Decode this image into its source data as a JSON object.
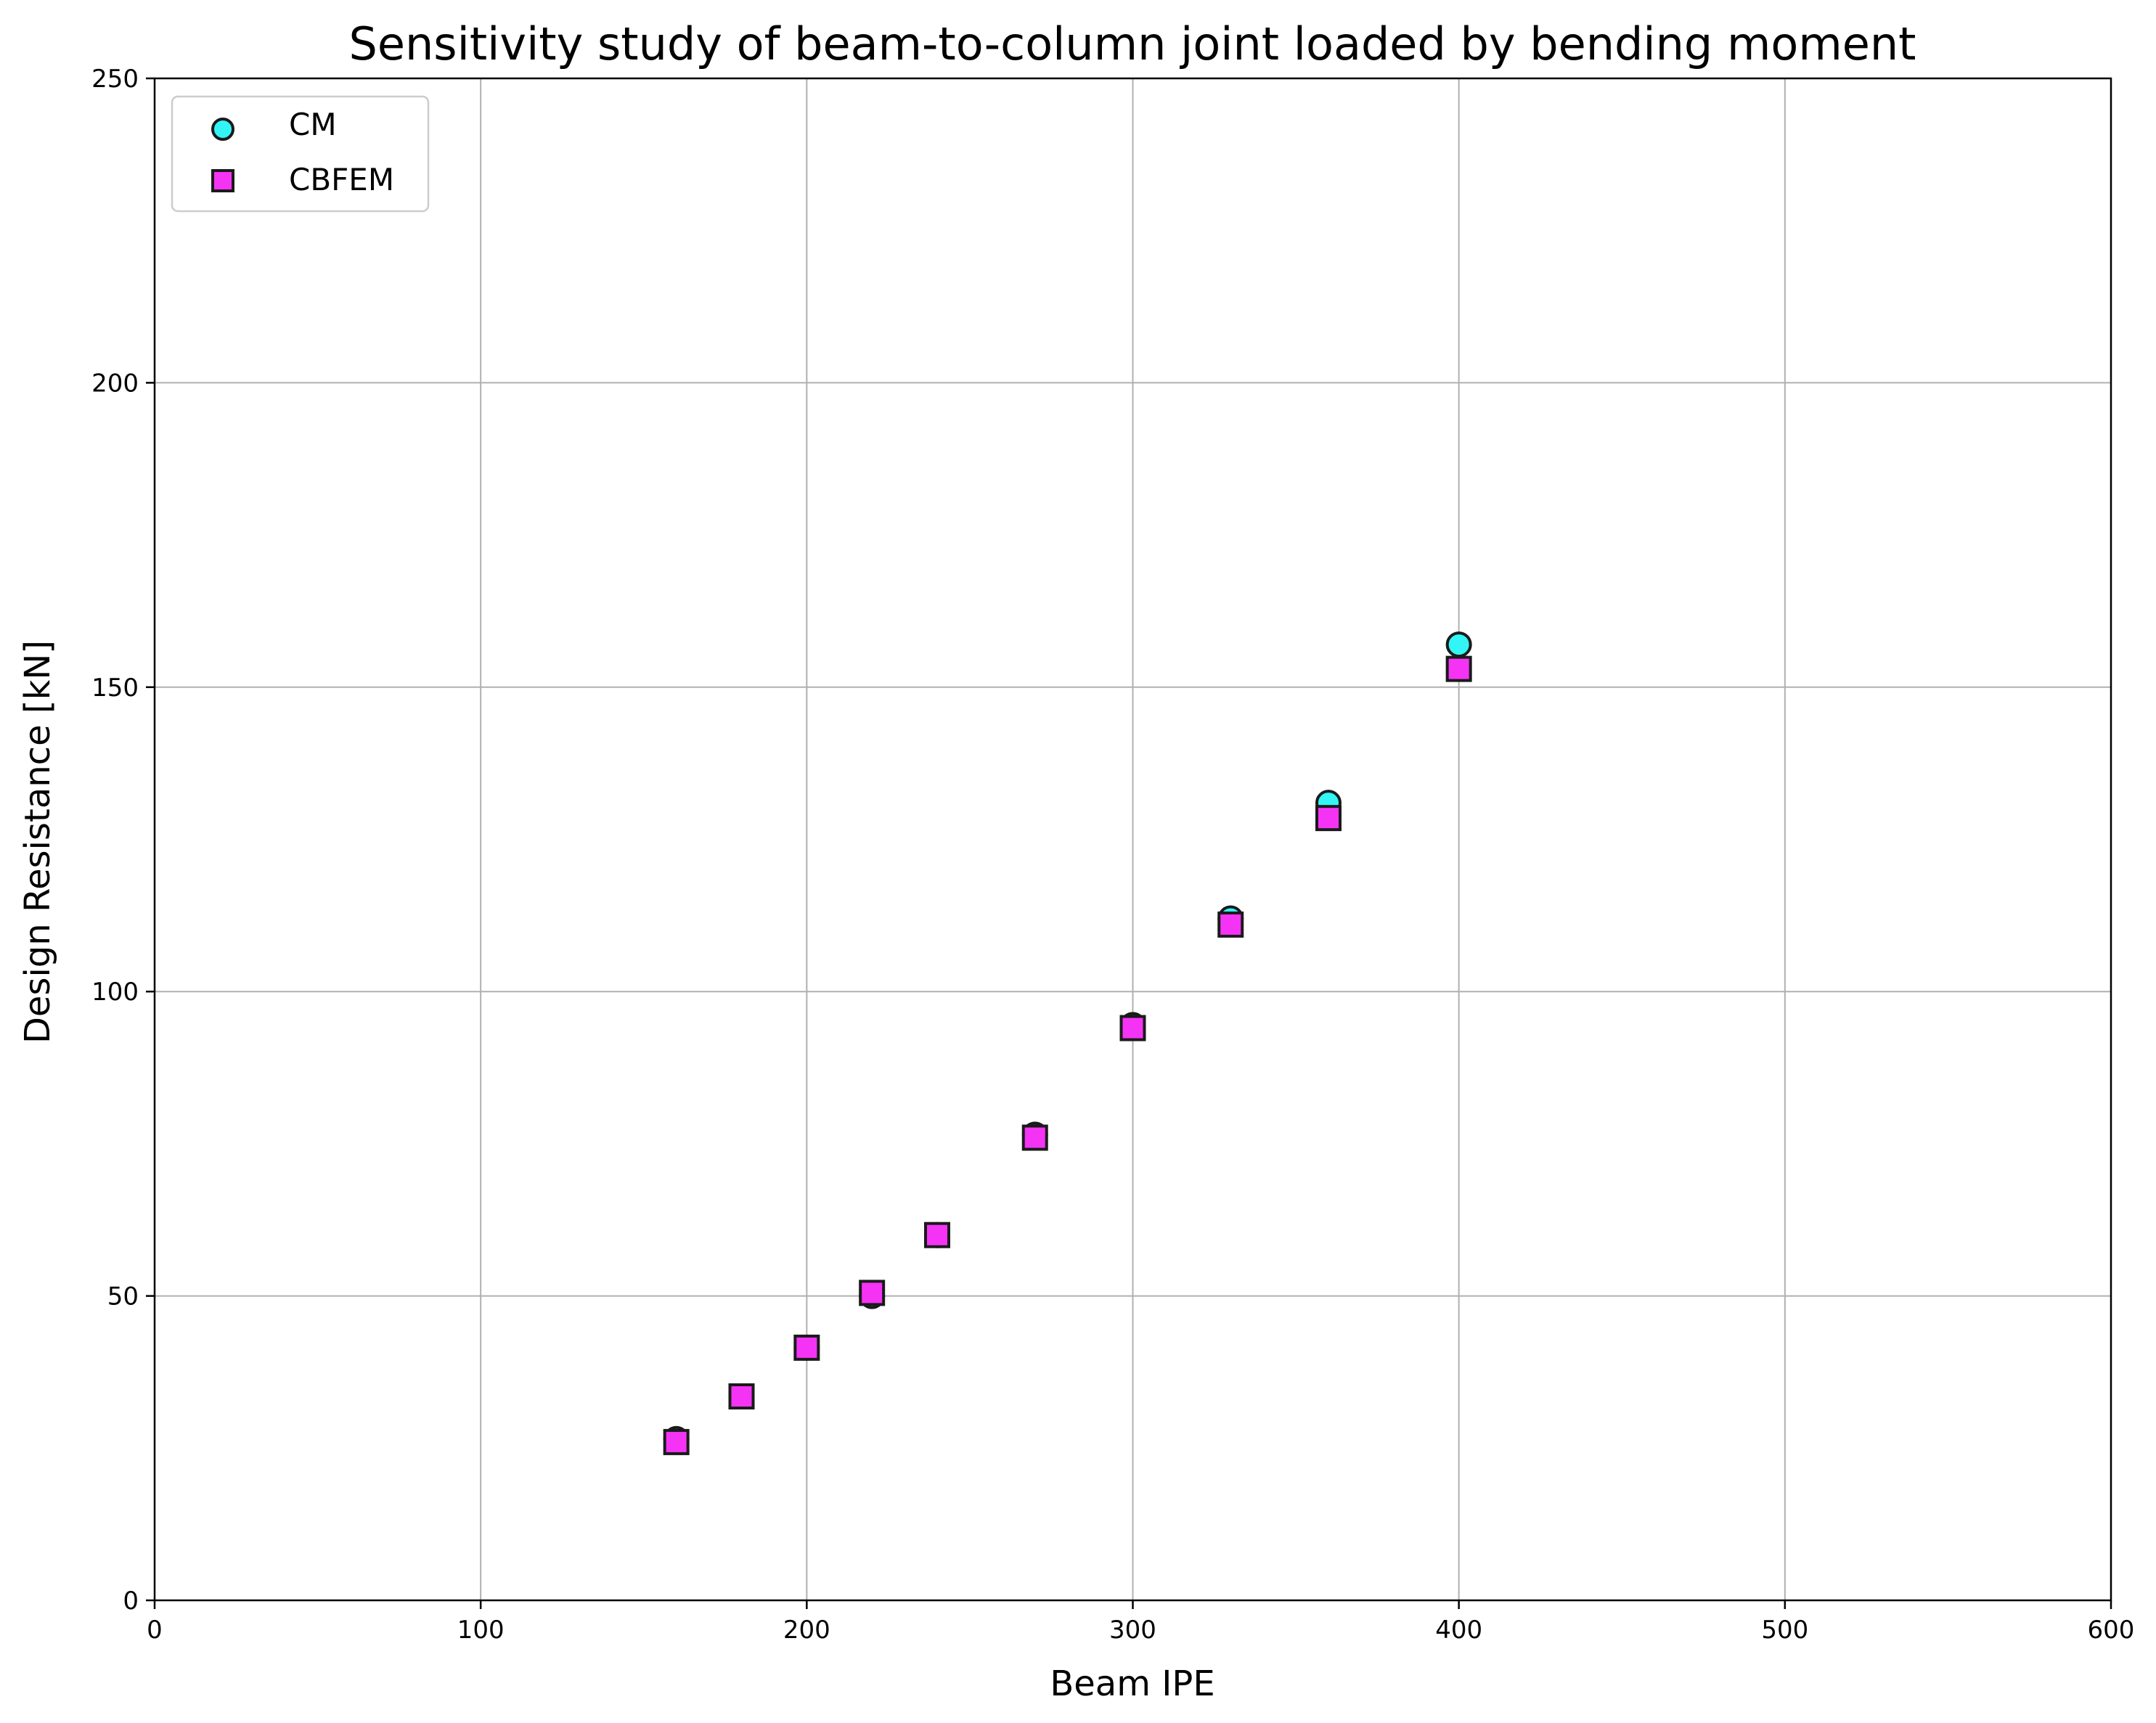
{
  "chart_data": {
    "type": "scatter",
    "title": "Sensitivity study of beam-to-column joint loaded by bending moment",
    "xlabel": "Beam IPE",
    "ylabel": "Design Resistance [kN]",
    "xlim": [
      0,
      600
    ],
    "ylim": [
      0,
      250
    ],
    "xticks": [
      "0",
      "100",
      "200",
      "300",
      "400",
      "500",
      "600"
    ],
    "yticks": [
      "0",
      "50",
      "100",
      "150",
      "200",
      "250"
    ],
    "grid": true,
    "legend_position": "top-left",
    "series": [
      {
        "name": "CM",
        "marker": "circle",
        "color": "#33f5f5",
        "edge_color": "#1a1a1a",
        "x": [
          160,
          180,
          200,
          220,
          240,
          270,
          300,
          330,
          360,
          400
        ],
        "y": [
          26.5,
          33.5,
          41.5,
          50.0,
          60.0,
          76.5,
          94.5,
          112.0,
          131.0,
          157.0
        ]
      },
      {
        "name": "CBFEM",
        "marker": "square",
        "color": "#f533f5",
        "edge_color": "#1a1a1a",
        "x": [
          160,
          180,
          200,
          220,
          240,
          270,
          300,
          330,
          360,
          400
        ],
        "y": [
          26.0,
          33.5,
          41.5,
          50.5,
          60.0,
          76.0,
          94.0,
          111.0,
          128.5,
          153.0
        ]
      }
    ]
  }
}
